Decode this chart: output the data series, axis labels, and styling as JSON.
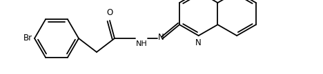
{
  "background_color": "#ffffff",
  "line_color": "#000000",
  "line_width": 1.3,
  "font_size": 8.5,
  "figsize": [
    4.68,
    1.08
  ],
  "dpi": 100,
  "xlim": [
    0,
    468
  ],
  "ylim": [
    0,
    108
  ]
}
